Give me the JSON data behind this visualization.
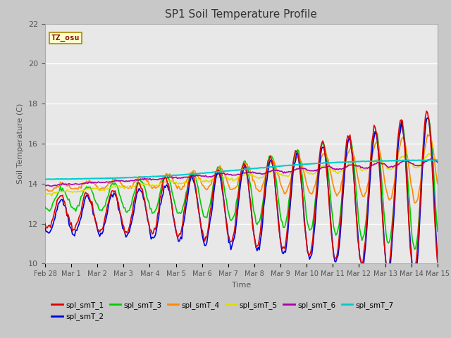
{
  "title": "SP1 Soil Temperature Profile",
  "xlabel": "Time",
  "ylabel": "Soil Temperature (C)",
  "ylim": [
    10,
    22
  ],
  "yticks": [
    10,
    12,
    14,
    16,
    18,
    20,
    22
  ],
  "fig_facecolor": "#c8c8c8",
  "plot_facecolor": "#e8e8e8",
  "series_colors": {
    "spl_smT_1": "#dd0000",
    "spl_smT_2": "#0000dd",
    "spl_smT_3": "#00cc00",
    "spl_smT_4": "#ff8800",
    "spl_smT_5": "#dddd00",
    "spl_smT_6": "#aa00aa",
    "spl_smT_7": "#00cccc"
  },
  "tz_label": "TZ_osu",
  "tz_bg": "#ffffcc",
  "tz_border": "#aa8800",
  "tz_text_color": "#880000",
  "days": [
    "Feb 28",
    "Mar 1",
    "Mar 2",
    "Mar 3",
    "Mar 4",
    "Mar 5",
    "Mar 6",
    "Mar 7",
    "Mar 8",
    "Mar 9",
    "Mar 10",
    "Mar 11",
    "Mar 12",
    "Mar 13",
    "Mar 14",
    "Mar 15"
  ],
  "day_positions": [
    0,
    1,
    2,
    3,
    4,
    5,
    6,
    7,
    8,
    9,
    10,
    11,
    12,
    13,
    14,
    15
  ],
  "legend_labels": [
    "spl_smT_1",
    "spl_smT_2",
    "spl_smT_3",
    "spl_smT_4",
    "spl_smT_5",
    "spl_smT_6",
    "spl_smT_7"
  ]
}
